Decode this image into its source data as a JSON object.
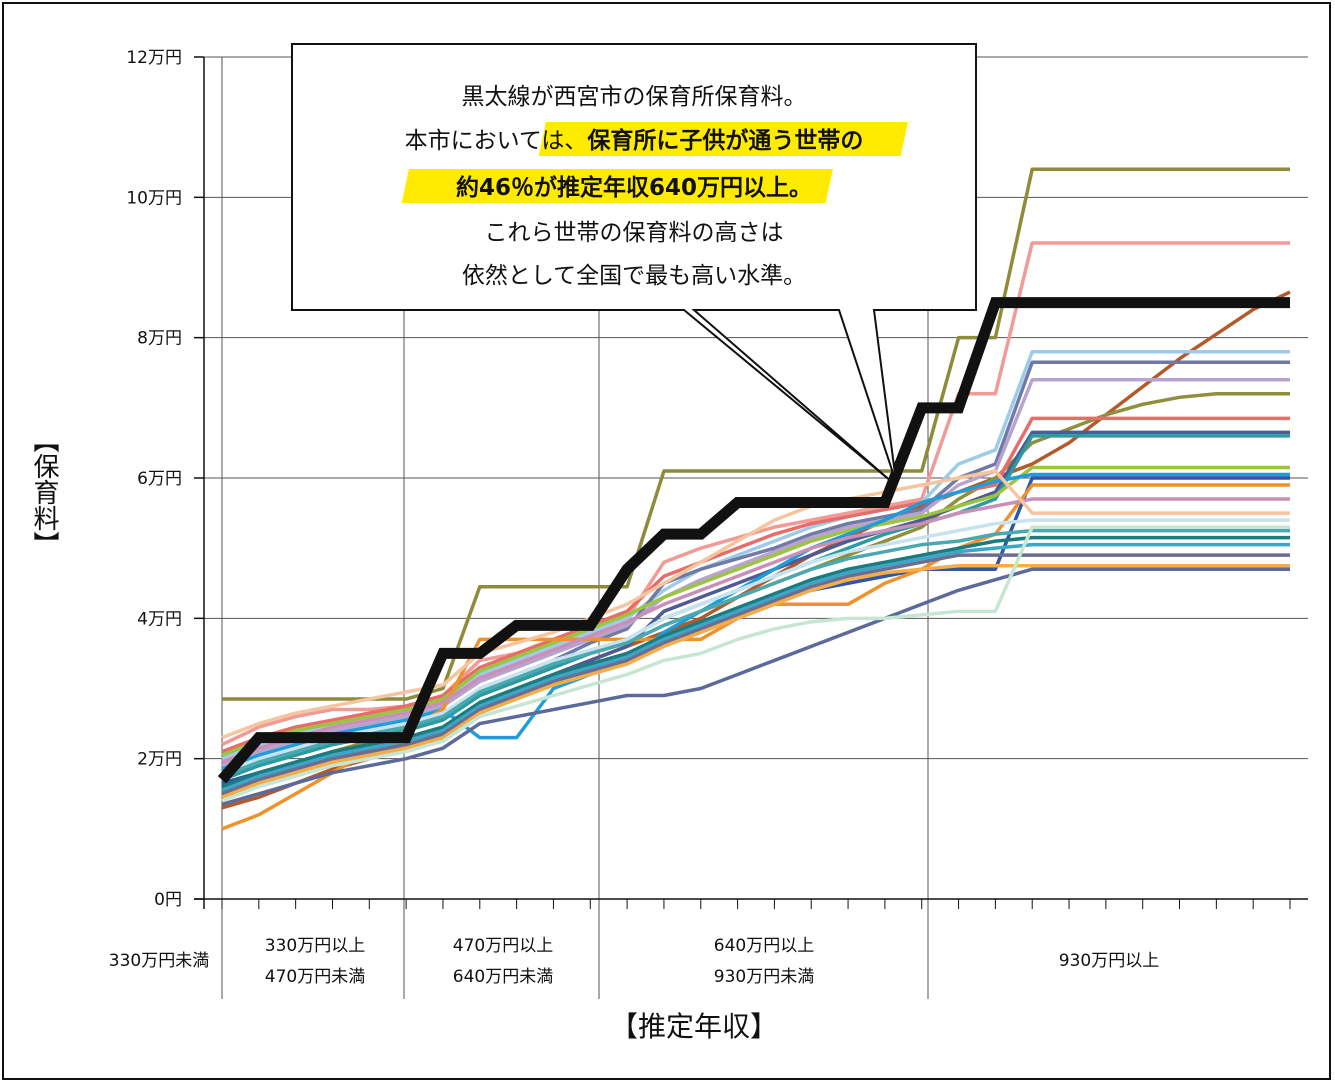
{
  "chart_data": {
    "type": "line",
    "title": "",
    "ylabel": "【保育料】",
    "xlabel": "【推定年収】",
    "ylim": [
      0,
      120000
    ],
    "yticks": [
      {
        "value": 0,
        "label": "0円"
      },
      {
        "value": 20000,
        "label": "2万円"
      },
      {
        "value": 40000,
        "label": "4万円"
      },
      {
        "value": 60000,
        "label": "6万円"
      },
      {
        "value": 80000,
        "label": "8万円"
      },
      {
        "value": 100000,
        "label": "10万円"
      },
      {
        "value": 120000,
        "label": "12万円"
      }
    ],
    "groups": [
      {
        "lines": [
          "330万円未満"
        ],
        "steps": 0
      },
      {
        "lines": [
          "330万円以上",
          "470万円未満"
        ],
        "steps": 4
      },
      {
        "lines": [
          "470万円以上",
          "640万円未満"
        ],
        "steps": 4
      },
      {
        "lines": [
          "640万円以上",
          "930万円未満"
        ],
        "steps": 7
      },
      {
        "lines": [
          "930万円以上"
        ],
        "steps": 8
      }
    ],
    "callout": {
      "line1": "黒太線が西宮市の保育所保育料。",
      "line2_plain": "本市においては、",
      "line2_highlight": "保育所に子供が通う世帯の",
      "line3_highlight": "約46％が推定年収640万円以上。",
      "line4": "これら世帯の保育料の高さは",
      "line5": "依然として全国で最も高い水準。",
      "highlight_color": "#ffeb00"
    },
    "highlight_series": {
      "color": "#111111",
      "values": [
        17000,
        23000,
        23000,
        23000,
        23000,
        23000,
        35000,
        35000,
        39000,
        39000,
        39000,
        47000,
        52000,
        52000,
        56500,
        56500,
        56500,
        56500,
        56500,
        70000,
        70000,
        85000,
        85000,
        85000,
        85000,
        85000,
        85000,
        85000,
        85000,
        85000
      ]
    },
    "series": [
      {
        "color": "#8c8c3a",
        "values": [
          28500,
          28500,
          28500,
          28500,
          28500,
          28500,
          30000,
          44500,
          44500,
          44500,
          44500,
          44500,
          61000,
          61000,
          61000,
          61000,
          61000,
          61000,
          61000,
          61000,
          80000,
          80000,
          104000,
          104000,
          104000,
          104000,
          104000,
          104000,
          104000,
          104000
        ]
      },
      {
        "color": "#f19a96",
        "values": [
          22000,
          24500,
          26000,
          27000,
          27000,
          27500,
          29000,
          34000,
          35000,
          36500,
          38000,
          40000,
          48000,
          50000,
          51500,
          53000,
          54000,
          55000,
          56000,
          57000,
          72000,
          72000,
          93500,
          93500,
          93500,
          93500,
          93500,
          93500,
          93500,
          93500
        ]
      },
      {
        "color": "#b35a2a",
        "values": [
          13000,
          14500,
          16500,
          18500,
          20000,
          21500,
          24000,
          27000,
          30000,
          32000,
          34000,
          36000,
          38000,
          40000,
          43000,
          46000,
          49000,
          51500,
          54000,
          56000,
          58000,
          60000,
          62000,
          65000,
          69000,
          73000,
          77000,
          80500,
          84000,
          86500
        ]
      },
      {
        "color": "#9ecbe8",
        "values": [
          20000,
          22000,
          23500,
          25000,
          26000,
          27000,
          28000,
          32000,
          34000,
          36000,
          38000,
          40000,
          44000,
          47000,
          49000,
          51000,
          53000,
          54500,
          55500,
          56500,
          62000,
          64000,
          78000,
          78000,
          78000,
          78000,
          78000,
          78000,
          78000,
          78000
        ]
      },
      {
        "color": "#6f7aa6",
        "values": [
          18000,
          20000,
          21500,
          22500,
          23500,
          24500,
          26000,
          30000,
          32000,
          34000,
          36500,
          38500,
          45000,
          47000,
          48500,
          50000,
          52000,
          53500,
          54500,
          55500,
          60000,
          62000,
          76500,
          76500,
          76500,
          76500,
          76500,
          76500,
          76500,
          76500
        ]
      },
      {
        "color": "#b8a3cf",
        "values": [
          19000,
          21000,
          22500,
          24000,
          25000,
          26000,
          27500,
          31000,
          33000,
          35000,
          37000,
          39000,
          43000,
          45500,
          47500,
          49500,
          51500,
          53000,
          54000,
          55000,
          59000,
          61000,
          74000,
          74000,
          74000,
          74000,
          74000,
          74000,
          74000,
          74000
        ]
      },
      {
        "color": "#8f8f3c",
        "values": [
          15000,
          17000,
          19000,
          21000,
          22500,
          24000,
          26000,
          29000,
          31000,
          33000,
          35000,
          36500,
          39000,
          41000,
          43000,
          45000,
          47000,
          49000,
          51000,
          53000,
          57000,
          60000,
          65000,
          67000,
          69000,
          70500,
          71500,
          72000,
          72000,
          72000
        ]
      },
      {
        "color": "#e86d6a",
        "values": [
          21000,
          23000,
          24500,
          25500,
          26500,
          27500,
          29000,
          33000,
          35000,
          37000,
          39000,
          41000,
          46000,
          48000,
          50000,
          52000,
          53500,
          54500,
          55500,
          56500,
          58000,
          59000,
          68500,
          68500,
          68500,
          68500,
          68500,
          68500,
          68500,
          68500
        ]
      },
      {
        "color": "#4e5b95",
        "values": [
          16000,
          18000,
          19500,
          21000,
          22000,
          23000,
          24500,
          28000,
          30000,
          32000,
          34000,
          36000,
          41000,
          43000,
          45000,
          47000,
          49000,
          51000,
          52500,
          54000,
          56000,
          58000,
          66500,
          66500,
          66500,
          66500,
          66500,
          66500,
          66500,
          66500
        ]
      },
      {
        "color": "#2a9ca0",
        "values": [
          17000,
          19000,
          20500,
          22000,
          23000,
          24000,
          25500,
          29000,
          31000,
          33000,
          35000,
          37000,
          40000,
          42000,
          44000,
          46000,
          48000,
          50000,
          52000,
          53500,
          55000,
          57000,
          66000,
          66000,
          66000,
          66000,
          66000,
          66000,
          66000,
          66000
        ]
      },
      {
        "color": "#9bc43f",
        "values": [
          20500,
          22500,
          24000,
          25000,
          26000,
          27000,
          28500,
          32500,
          34500,
          36500,
          38500,
          40500,
          43000,
          45000,
          47000,
          49000,
          51000,
          52500,
          53500,
          54500,
          56000,
          57500,
          61500,
          61500,
          61500,
          61500,
          61500,
          61500,
          61500,
          61500
        ]
      },
      {
        "color": "#1f9dd9",
        "values": [
          18500,
          20500,
          22000,
          23500,
          24500,
          25500,
          27000,
          23000,
          23000,
          30000,
          32000,
          34000,
          38000,
          41000,
          44000,
          47000,
          50000,
          52000,
          54000,
          56500,
          58000,
          59500,
          60500,
          60500,
          60500,
          60500,
          60500,
          60500,
          60500,
          60500
        ]
      },
      {
        "color": "#2f56a8",
        "values": [
          16500,
          18000,
          19000,
          20000,
          21000,
          22000,
          23000,
          27000,
          29000,
          31000,
          33000,
          35000,
          37000,
          39000,
          41000,
          43000,
          44000,
          45000,
          46000,
          47000,
          47000,
          47000,
          60000,
          60000,
          60000,
          60000,
          60000,
          60000,
          60000,
          60000
        ]
      },
      {
        "color": "#f0922b",
        "values": [
          10000,
          12000,
          15000,
          18000,
          21000,
          24000,
          27000,
          37000,
          37000,
          37000,
          37000,
          37000,
          37000,
          37000,
          40000,
          42000,
          42000,
          42000,
          45000,
          47000,
          50000,
          52000,
          59000,
          59000,
          59000,
          59000,
          59000,
          59000,
          59000,
          59000
        ]
      },
      {
        "color": "#c98fb9",
        "values": [
          19500,
          21500,
          23000,
          24500,
          25500,
          26500,
          28000,
          31500,
          33500,
          35500,
          37500,
          39500,
          42000,
          44000,
          46000,
          48000,
          50000,
          51500,
          52500,
          53500,
          55000,
          56000,
          57000,
          57000,
          57000,
          57000,
          57000,
          57000,
          57000,
          57000
        ]
      },
      {
        "color": "#f5c5a0",
        "values": [
          23000,
          25000,
          26500,
          27500,
          28500,
          29500,
          30500,
          35000,
          36500,
          38000,
          40000,
          42000,
          45000,
          48000,
          51000,
          54000,
          56000,
          57000,
          58000,
          59000,
          60000,
          61000,
          55000,
          55000,
          55000,
          55000,
          55000,
          55000,
          55000,
          55000
        ]
      },
      {
        "color": "#c7e3f0",
        "values": [
          18000,
          20000,
          21500,
          23000,
          24000,
          25000,
          26500,
          30000,
          32000,
          34000,
          35500,
          37000,
          40000,
          42000,
          44000,
          46000,
          48000,
          49500,
          50500,
          51500,
          52500,
          53500,
          54000,
          54000,
          54000,
          54000,
          54000,
          54000,
          54000,
          54000
        ]
      },
      {
        "color": "#4aa8b0",
        "values": [
          17500,
          19500,
          21000,
          22500,
          23500,
          24500,
          26000,
          29500,
          31500,
          33500,
          35000,
          36500,
          39000,
          41000,
          43000,
          45000,
          47000,
          48500,
          49500,
          50500,
          51000,
          52000,
          52500,
          52500,
          52500,
          52500,
          52500,
          52500,
          52500,
          52500
        ]
      },
      {
        "color": "#1d7b7e",
        "values": [
          16000,
          18000,
          19500,
          21000,
          22000,
          23000,
          24500,
          28000,
          30000,
          32000,
          33500,
          35000,
          37500,
          39500,
          41500,
          43500,
          45500,
          47000,
          48000,
          49000,
          50000,
          51000,
          51500,
          51500,
          51500,
          51500,
          51500,
          51500,
          51500,
          51500
        ]
      },
      {
        "color": "#3aa6c8",
        "values": [
          15500,
          17500,
          19000,
          20500,
          21500,
          22500,
          24000,
          27500,
          29500,
          31500,
          33000,
          34500,
          37000,
          39000,
          41000,
          43000,
          45000,
          46500,
          47500,
          48500,
          49500,
          50000,
          50500,
          50500,
          50500,
          50500,
          50500,
          50500,
          50500,
          50500
        ]
      },
      {
        "color": "#6d6d8f",
        "values": [
          15000,
          17000,
          18500,
          20000,
          21000,
          22000,
          23500,
          27000,
          29000,
          31000,
          32500,
          34000,
          36500,
          38500,
          40500,
          42500,
          44500,
          46000,
          47000,
          48000,
          49000,
          49000,
          49000,
          49000,
          49000,
          49000,
          49000,
          49000,
          49000,
          49000
        ]
      },
      {
        "color": "#f3ad4a",
        "values": [
          14500,
          16500,
          18000,
          19500,
          20500,
          21500,
          23000,
          26500,
          28500,
          30500,
          32000,
          33500,
          36000,
          38000,
          40000,
          42000,
          44000,
          45500,
          46500,
          47000,
          47500,
          47500,
          47500,
          47500,
          47500,
          47500,
          47500,
          47500,
          47500,
          47500
        ]
      },
      {
        "color": "#5b6a9a",
        "values": [
          13500,
          15000,
          16500,
          18000,
          19000,
          20000,
          21500,
          25000,
          26000,
          27000,
          28000,
          29000,
          29000,
          30000,
          32000,
          34000,
          36000,
          38000,
          40000,
          42000,
          44000,
          45500,
          47000,
          47000,
          47000,
          47000,
          47000,
          47000,
          47000,
          47000
        ]
      },
      {
        "color": "#c6e6d4",
        "values": [
          14000,
          16000,
          17500,
          19000,
          20000,
          21000,
          22500,
          26000,
          27500,
          29000,
          30500,
          32000,
          34000,
          35000,
          37000,
          38500,
          39500,
          40000,
          40000,
          40500,
          41000,
          41000,
          53000,
          53000,
          53000,
          53000,
          53000,
          53000,
          53000,
          53000
        ]
      }
    ]
  }
}
